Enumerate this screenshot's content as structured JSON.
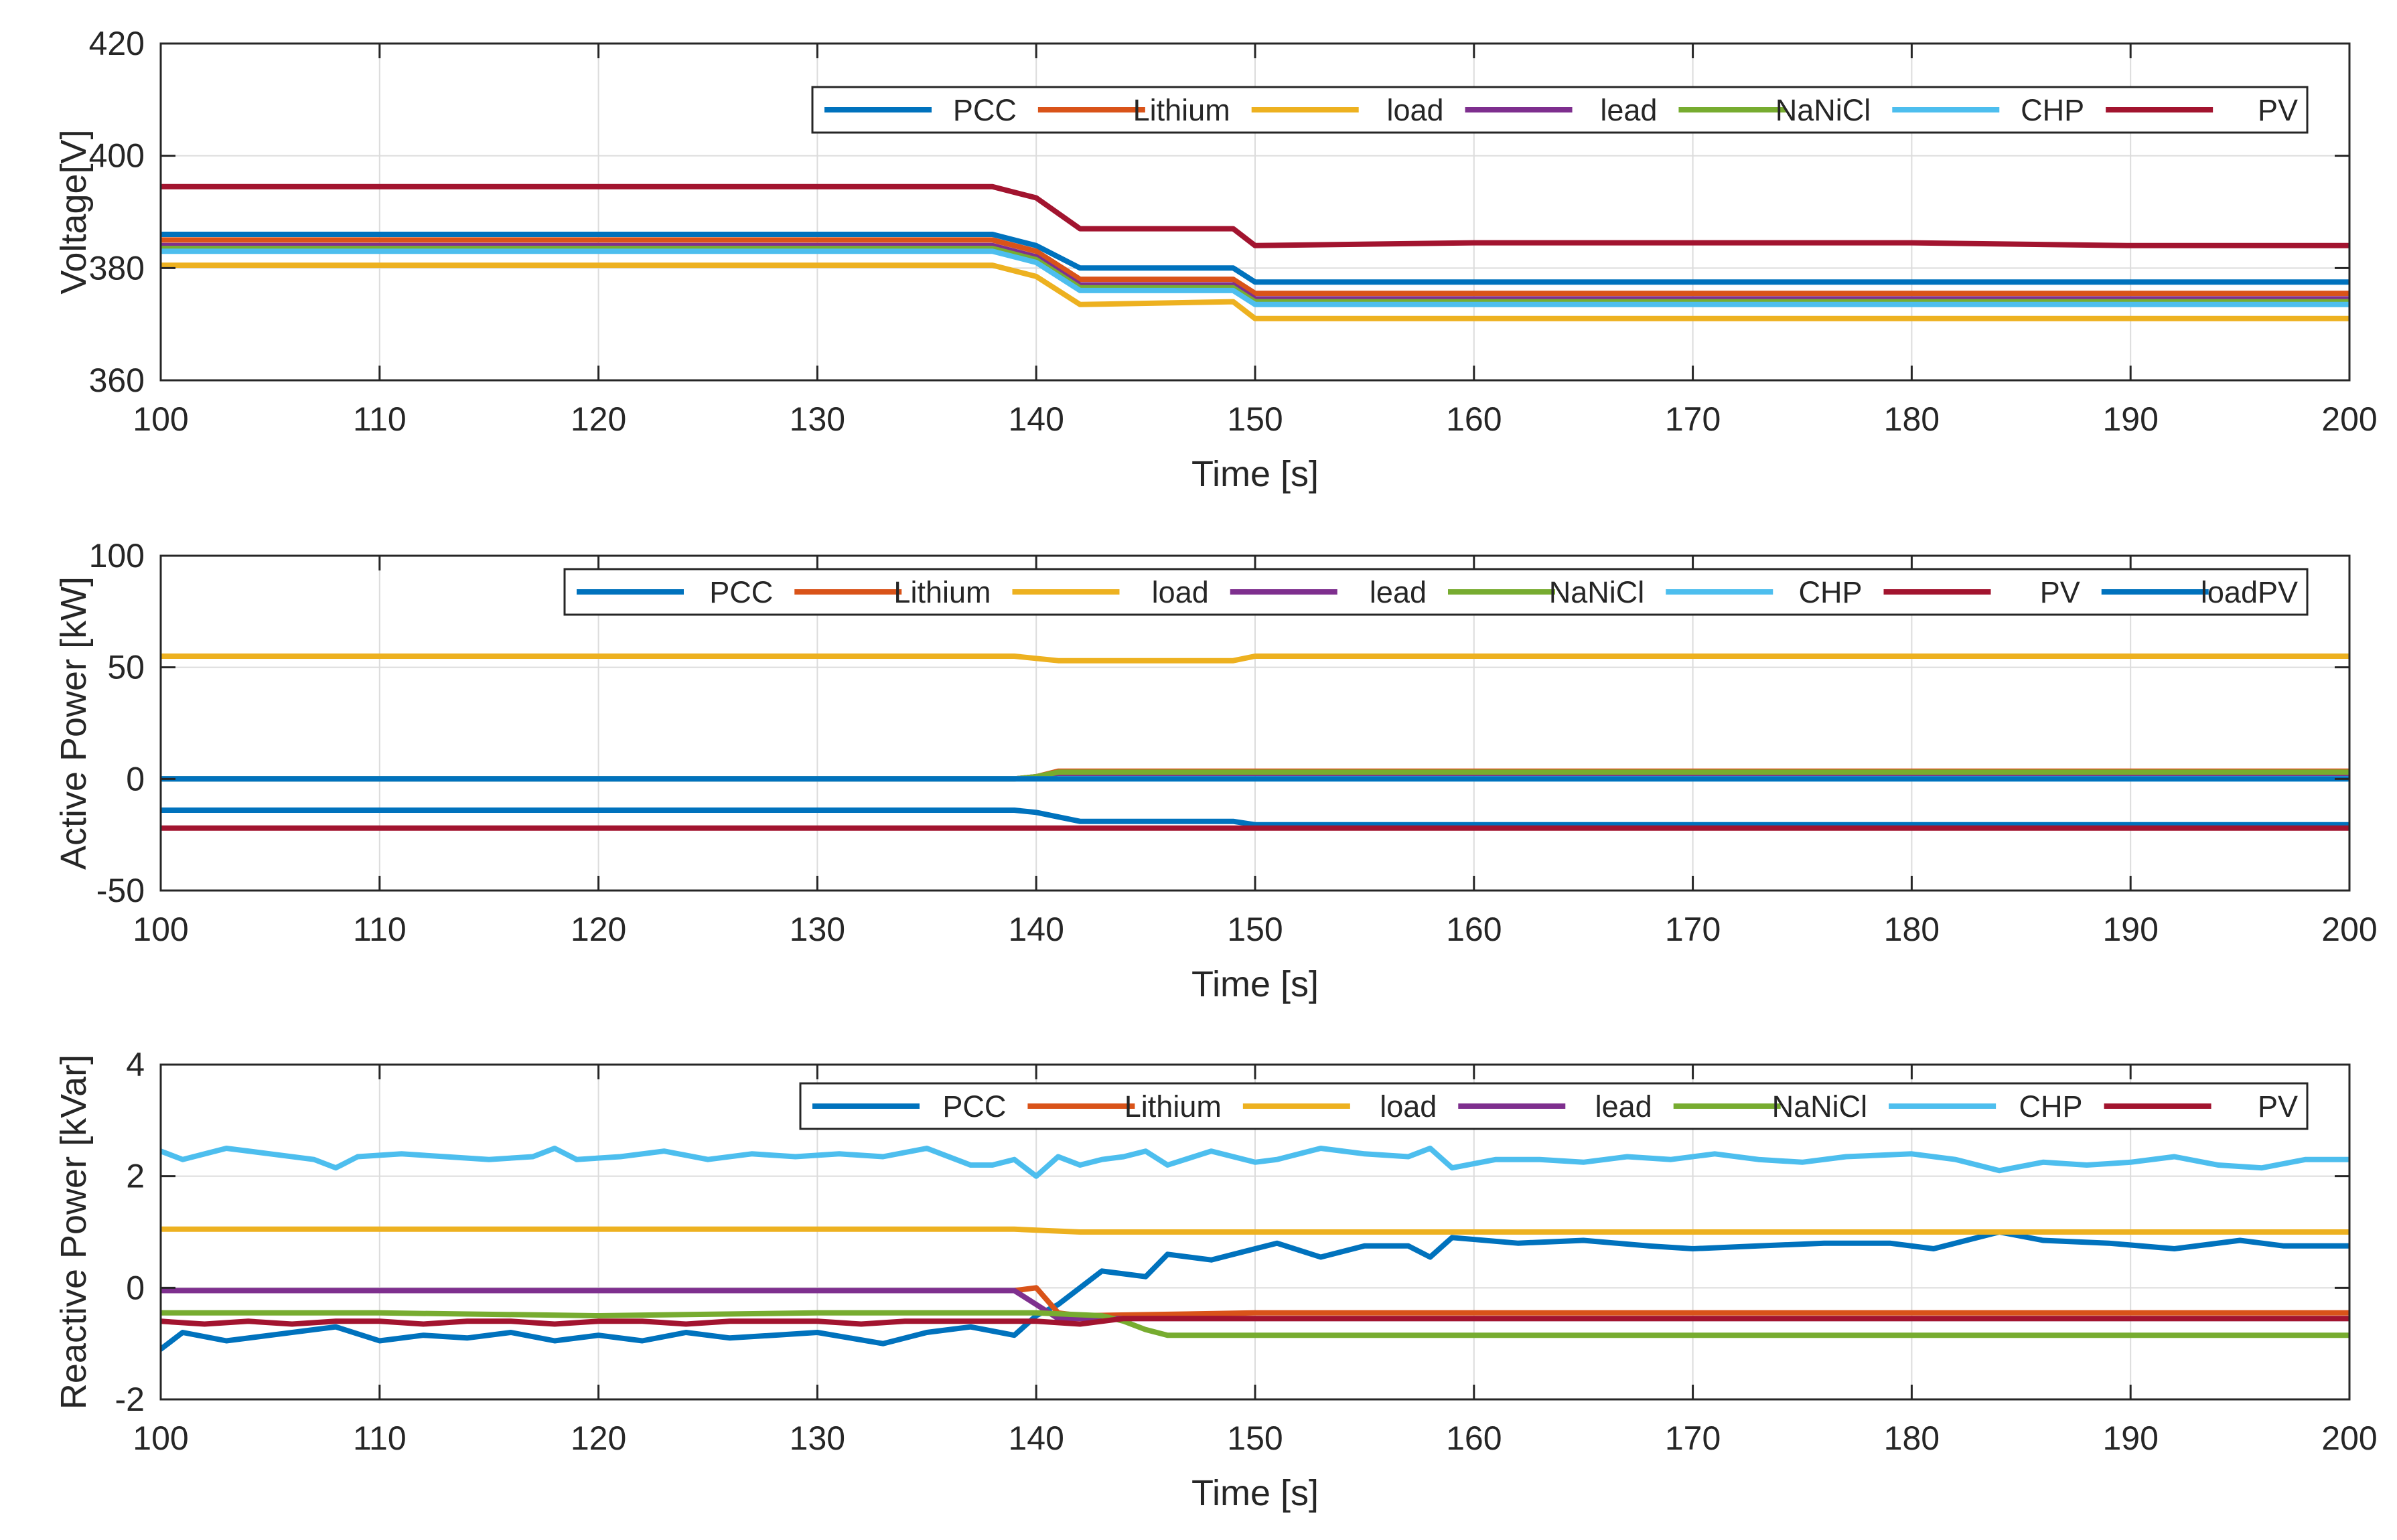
{
  "chart_data": [
    {
      "type": "line",
      "xlabel": "Time [s]",
      "ylabel": "Voltage[V]",
      "xlim": [
        100,
        200
      ],
      "ylim": [
        360,
        420
      ],
      "xticks": [
        "100",
        "110",
        "120",
        "130",
        "140",
        "150",
        "160",
        "170",
        "180",
        "190",
        "200"
      ],
      "yticks": [
        "360",
        "380",
        "400",
        "420"
      ],
      "series": [
        {
          "name": "PCC",
          "color": "#0072BD",
          "x": [
            100,
            110,
            120,
            130,
            138,
            140,
            142,
            149,
            150,
            160,
            170,
            180,
            190,
            200
          ],
          "y": [
            386,
            386,
            386,
            386,
            386,
            384,
            380,
            380,
            377.5,
            377.5,
            377.5,
            377.5,
            377.5,
            377.5
          ]
        },
        {
          "name": "Lithium",
          "color": "#D95319",
          "x": [
            100,
            110,
            120,
            130,
            138,
            140,
            142,
            149,
            150,
            160,
            170,
            180,
            190,
            200
          ],
          "y": [
            385,
            385,
            385,
            385,
            385,
            383,
            378,
            378,
            375.5,
            375.5,
            375.5,
            375.5,
            375.5,
            375.5
          ]
        },
        {
          "name": "load",
          "color": "#EDB120",
          "x": [
            100,
            110,
            120,
            130,
            138,
            140,
            142,
            149,
            150,
            160,
            170,
            180,
            190,
            200
          ],
          "y": [
            380.5,
            380.5,
            380.5,
            380.5,
            380.5,
            378.5,
            373.5,
            374,
            371,
            371,
            371,
            371,
            371,
            371
          ]
        },
        {
          "name": "lead",
          "color": "#7E2F8E",
          "x": [
            100,
            110,
            120,
            130,
            138,
            140,
            142,
            149,
            150,
            160,
            170,
            180,
            190,
            200
          ],
          "y": [
            384,
            384,
            384,
            384,
            384,
            382,
            377,
            377,
            374.5,
            374.5,
            374.5,
            374.5,
            374.5,
            374.5
          ]
        },
        {
          "name": "NaNiCl",
          "color": "#77AC30",
          "x": [
            100,
            110,
            120,
            130,
            138,
            140,
            142,
            149,
            150,
            160,
            170,
            180,
            190,
            200
          ],
          "y": [
            383.5,
            383.5,
            383.5,
            383.5,
            383.5,
            381.5,
            376.5,
            376.5,
            374,
            374,
            374,
            374,
            374,
            374
          ]
        },
        {
          "name": "CHP",
          "color": "#4DBEEE",
          "x": [
            100,
            110,
            120,
            130,
            138,
            140,
            142,
            149,
            150,
            160,
            170,
            180,
            190,
            200
          ],
          "y": [
            383,
            383,
            383,
            383,
            383,
            381,
            376,
            376,
            373.5,
            373.5,
            373.5,
            373.5,
            373.5,
            373.5
          ]
        },
        {
          "name": "PV",
          "color": "#A2142F",
          "x": [
            100,
            110,
            120,
            130,
            138,
            140,
            142,
            149,
            150,
            160,
            170,
            180,
            190,
            200
          ],
          "y": [
            394.5,
            394.5,
            394.5,
            394.5,
            394.5,
            392.5,
            387,
            387,
            384,
            384.5,
            384.5,
            384.5,
            384,
            384
          ]
        }
      ]
    },
    {
      "type": "line",
      "xlabel": "Time [s]",
      "ylabel": "Active Power [kW]",
      "xlim": [
        100,
        200
      ],
      "ylim": [
        -50,
        100
      ],
      "xticks": [
        "100",
        "110",
        "120",
        "130",
        "140",
        "150",
        "160",
        "170",
        "180",
        "190",
        "200"
      ],
      "yticks": [
        "-50",
        "0",
        "50",
        "100"
      ],
      "series": [
        {
          "name": "PCC",
          "color": "#0072BD",
          "x": [
            100,
            110,
            120,
            130,
            139,
            140,
            142,
            149,
            150,
            160,
            170,
            180,
            190,
            200
          ],
          "y": [
            -14,
            -14,
            -14,
            -14,
            -14,
            -15,
            -19,
            -19,
            -20.5,
            -20.5,
            -20.5,
            -20.5,
            -20.5,
            -20.5
          ]
        },
        {
          "name": "Lithium",
          "color": "#D95319",
          "x": [
            100,
            139,
            140,
            141,
            150,
            200
          ],
          "y": [
            0,
            0,
            1,
            3.5,
            3.5,
            3.5
          ]
        },
        {
          "name": "load",
          "color": "#EDB120",
          "x": [
            100,
            110,
            120,
            130,
            139,
            141,
            149,
            150,
            200
          ],
          "y": [
            55,
            55,
            55,
            55,
            55,
            53,
            53,
            55,
            55
          ]
        },
        {
          "name": "lead",
          "color": "#7E2F8E",
          "x": [
            100,
            139,
            140,
            141,
            200
          ],
          "y": [
            0,
            0,
            1,
            2.5,
            2.5
          ]
        },
        {
          "name": "NaNiCl",
          "color": "#77AC30",
          "x": [
            100,
            139,
            140,
            141,
            200
          ],
          "y": [
            0,
            0,
            1,
            3,
            3
          ]
        },
        {
          "name": "CHP",
          "color": "#4DBEEE",
          "x": [
            100,
            200
          ],
          "y": [
            0,
            0
          ]
        },
        {
          "name": "PV",
          "color": "#A2142F",
          "x": [
            100,
            200
          ],
          "y": [
            -22,
            -22
          ]
        },
        {
          "name": "loadPV",
          "color": "#0072BD",
          "x": [
            100,
            200
          ],
          "y": [
            0,
            0
          ]
        }
      ]
    },
    {
      "type": "line",
      "xlabel": "Time [s]",
      "ylabel": "Reactive Power [kVar]",
      "xlim": [
        100,
        200
      ],
      "ylim": [
        -2,
        4
      ],
      "xticks": [
        "100",
        "110",
        "120",
        "130",
        "140",
        "150",
        "160",
        "170",
        "180",
        "190",
        "200"
      ],
      "yticks": [
        "-2",
        "0",
        "2",
        "4"
      ],
      "series": [
        {
          "name": "PCC",
          "color": "#0072BD",
          "x": [
            100,
            101,
            103,
            105,
            107,
            108,
            110,
            112,
            114,
            116,
            118,
            120,
            122,
            124,
            126,
            128,
            130,
            133,
            135,
            137,
            139,
            140,
            141,
            142,
            143,
            145,
            146,
            148,
            150,
            151,
            153,
            155,
            157,
            158,
            159,
            162,
            165,
            168,
            170,
            173,
            176,
            179,
            181,
            184,
            186,
            189,
            192,
            195,
            197,
            200
          ],
          "y": [
            -1.1,
            -0.8,
            -0.95,
            -0.85,
            -0.75,
            -0.7,
            -0.95,
            -0.85,
            -0.9,
            -0.8,
            -0.95,
            -0.85,
            -0.95,
            -0.8,
            -0.9,
            -0.85,
            -0.8,
            -1.0,
            -0.8,
            -0.7,
            -0.85,
            -0.5,
            -0.3,
            0.0,
            0.3,
            0.2,
            0.6,
            0.5,
            0.7,
            0.8,
            0.55,
            0.75,
            0.75,
            0.55,
            0.9,
            0.8,
            0.85,
            0.75,
            0.7,
            0.75,
            0.8,
            0.8,
            0.7,
            1.0,
            0.85,
            0.8,
            0.7,
            0.85,
            0.75,
            0.75
          ]
        },
        {
          "name": "Lithium",
          "color": "#D95319",
          "x": [
            100,
            139,
            140,
            141,
            142,
            150,
            200
          ],
          "y": [
            -0.05,
            -0.05,
            0.0,
            -0.45,
            -0.5,
            -0.45,
            -0.45
          ]
        },
        {
          "name": "load",
          "color": "#EDB120",
          "x": [
            100,
            110,
            120,
            130,
            139,
            142,
            150,
            160,
            170,
            180,
            190,
            200
          ],
          "y": [
            1.05,
            1.05,
            1.05,
            1.05,
            1.05,
            1.0,
            1.0,
            1.0,
            1.0,
            1.0,
            1.0,
            1.0
          ]
        },
        {
          "name": "lead",
          "color": "#7E2F8E",
          "x": [
            100,
            138,
            139,
            140,
            141,
            142,
            150,
            200
          ],
          "y": [
            -0.05,
            -0.05,
            -0.05,
            -0.3,
            -0.55,
            -0.55,
            -0.55,
            -0.55
          ]
        },
        {
          "name": "NaNiCl",
          "color": "#77AC30",
          "x": [
            100,
            110,
            120,
            130,
            140,
            143,
            144,
            145,
            146,
            148,
            150,
            155,
            160,
            170,
            180,
            190,
            200
          ],
          "y": [
            -0.45,
            -0.45,
            -0.5,
            -0.45,
            -0.45,
            -0.5,
            -0.6,
            -0.75,
            -0.85,
            -0.85,
            -0.85,
            -0.85,
            -0.85,
            -0.85,
            -0.85,
            -0.85,
            -0.85
          ]
        },
        {
          "name": "CHP",
          "color": "#4DBEEE",
          "x": [
            100,
            101,
            103,
            105,
            107,
            108,
            109,
            111,
            113,
            115,
            117,
            118,
            119,
            121,
            123,
            125,
            127,
            129,
            131,
            133,
            135,
            137,
            138,
            139,
            140,
            141,
            142,
            143,
            144,
            145,
            146,
            148,
            150,
            151,
            153,
            155,
            157,
            158,
            159,
            161,
            163,
            165,
            167,
            169,
            171,
            173,
            175,
            177,
            180,
            182,
            184,
            186,
            188,
            190,
            192,
            194,
            196,
            198,
            200
          ],
          "y": [
            2.45,
            2.3,
            2.5,
            2.4,
            2.3,
            2.15,
            2.35,
            2.4,
            2.35,
            2.3,
            2.35,
            2.5,
            2.3,
            2.35,
            2.45,
            2.3,
            2.4,
            2.35,
            2.4,
            2.35,
            2.5,
            2.2,
            2.2,
            2.3,
            2.0,
            2.35,
            2.2,
            2.3,
            2.35,
            2.45,
            2.2,
            2.45,
            2.25,
            2.3,
            2.5,
            2.4,
            2.35,
            2.5,
            2.15,
            2.3,
            2.3,
            2.25,
            2.35,
            2.3,
            2.4,
            2.3,
            2.25,
            2.35,
            2.4,
            2.3,
            2.1,
            2.25,
            2.2,
            2.25,
            2.35,
            2.2,
            2.15,
            2.3,
            2.3
          ]
        },
        {
          "name": "PV",
          "color": "#A2142F",
          "x": [
            100,
            102,
            104,
            106,
            108,
            110,
            112,
            114,
            116,
            118,
            120,
            122,
            124,
            126,
            128,
            130,
            132,
            134,
            136,
            138,
            140,
            142,
            144,
            146,
            150,
            160,
            170,
            180,
            190,
            200
          ],
          "y": [
            -0.6,
            -0.65,
            -0.6,
            -0.65,
            -0.6,
            -0.6,
            -0.65,
            -0.6,
            -0.6,
            -0.65,
            -0.6,
            -0.6,
            -0.65,
            -0.6,
            -0.6,
            -0.6,
            -0.65,
            -0.6,
            -0.6,
            -0.6,
            -0.6,
            -0.65,
            -0.55,
            -0.55,
            -0.55,
            -0.55,
            -0.55,
            -0.55,
            -0.55,
            -0.55
          ]
        }
      ]
    }
  ]
}
